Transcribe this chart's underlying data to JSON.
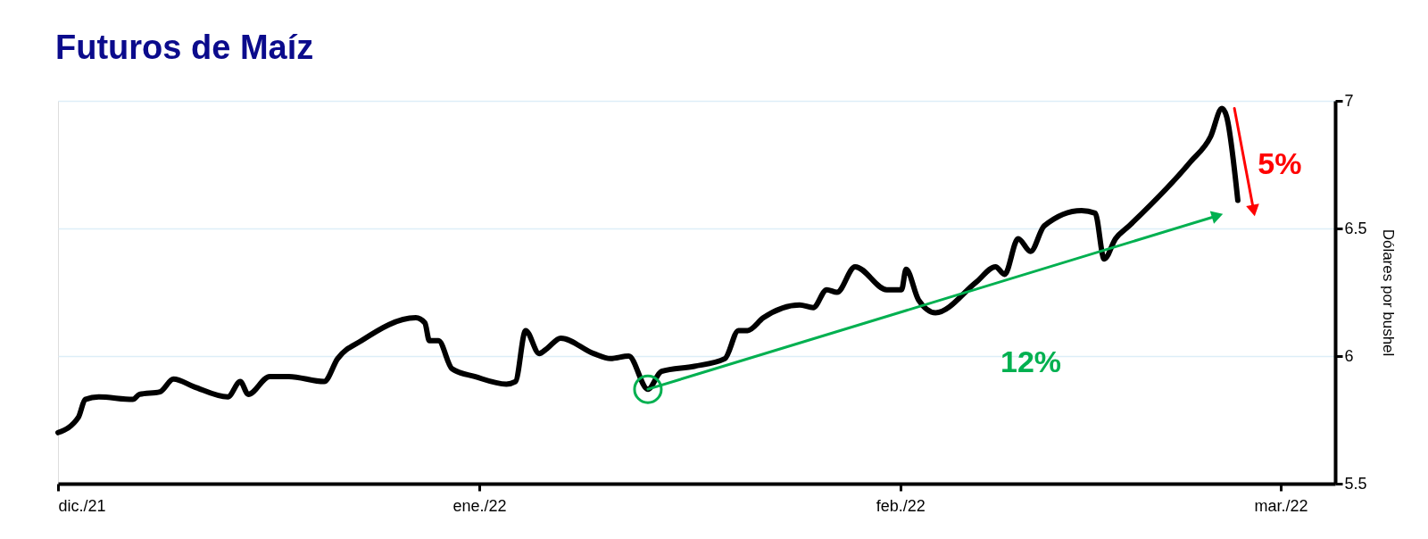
{
  "chart_data": {
    "type": "line",
    "title": "Futuros de Maíz",
    "ylabel": "Dólares por bushel",
    "xlim": [
      "2021-12-01",
      "2022-03-05"
    ],
    "xticks": [
      {
        "value": "2021-12-01",
        "label": "dic./21"
      },
      {
        "value": "2022-01-01",
        "label": "ene./22"
      },
      {
        "value": "2022-02-01",
        "label": "feb./22"
      },
      {
        "value": "2022-03-01",
        "label": "mar./22"
      }
    ],
    "ylim": [
      5.5,
      7
    ],
    "yticks": [
      5.5,
      6,
      6.5,
      7
    ],
    "grid": "y",
    "series": [
      {
        "color": "#000000",
        "x": [
          "2021-12-01T00:00",
          "2021-12-02T12:00",
          "2021-12-03T00:00",
          "2021-12-04T00:00",
          "2021-12-06T12:00",
          "2021-12-07T00:00",
          "2021-12-08T12:00",
          "2021-12-09T12:00",
          "2021-12-11T00:00",
          "2021-12-13T12:00",
          "2021-12-14T10:00",
          "2021-12-15T00:00",
          "2021-12-16T14:00",
          "2021-12-18T00:00",
          "2021-12-20T14:00",
          "2021-12-21T14:00",
          "2021-12-23T08:00",
          "2021-12-27T08:00",
          "2021-12-28T00:00",
          "2021-12-28T08:00",
          "2021-12-29T00:00",
          "2021-12-30T00:00",
          "2021-12-31T16:00",
          "2022-01-03T00:00",
          "2022-01-03T16:00",
          "2022-01-04T10:00",
          "2022-01-05T10:00",
          "2022-01-06T00:00",
          "2022-01-07T00:00",
          "2022-01-09T10:00",
          "2022-01-10T16:00",
          "2022-01-12T00:00",
          "2022-01-13T10:00",
          "2022-01-14T10:00",
          "2022-01-16T20:00",
          "2022-01-19T02:00",
          "2022-01-20T02:00",
          "2022-01-20T18:00",
          "2022-01-21T22:00",
          "2022-01-24T14:00",
          "2022-01-25T14:00",
          "2022-01-26T14:00",
          "2022-01-27T08:00",
          "2022-01-28T16:00",
          "2022-01-31T00:00",
          "2022-02-01T02:00",
          "2022-02-01T10:00",
          "2022-02-02T08:00",
          "2022-02-03T14:00",
          "2022-02-06T14:00",
          "2022-02-08T00:00",
          "2022-02-08T16:00",
          "2022-02-09T16:00",
          "2022-02-10T14:00",
          "2022-02-11T14:00",
          "2022-02-14T08:00",
          "2022-02-15T08:00",
          "2022-02-16T00:00",
          "2022-02-16T20:00",
          "2022-02-17T20:00",
          "2022-02-22T08:00",
          "2022-02-23T20:00",
          "2022-02-24T16:00",
          "2022-02-25T00:00",
          "2022-02-25T20:00"
        ],
        "values": [
          5.7,
          5.76,
          5.83,
          5.84,
          5.83,
          5.85,
          5.86,
          5.91,
          5.88,
          5.84,
          5.9,
          5.85,
          5.92,
          5.92,
          5.9,
          5.99,
          6.06,
          6.15,
          6.13,
          6.06,
          6.06,
          5.95,
          5.92,
          5.89,
          5.9,
          6.1,
          6.01,
          6.03,
          6.07,
          6.01,
          5.99,
          6.0,
          5.87,
          5.94,
          5.96,
          5.99,
          6.1,
          6.1,
          6.15,
          6.2,
          6.19,
          6.26,
          6.25,
          6.35,
          6.26,
          6.26,
          6.34,
          6.22,
          6.17,
          6.29,
          6.35,
          6.32,
          6.46,
          6.41,
          6.51,
          6.57,
          6.56,
          6.38,
          6.46,
          6.51,
          6.76,
          6.86,
          6.97,
          6.94,
          6.61
        ]
      },
      {
        "type": "line",
        "color": "#00b050",
        "x": [
          "2022-01-13T10:00",
          "2022-02-24T08:00"
        ],
        "values": [
          5.87,
          6.55
        ]
      },
      {
        "type": "line",
        "color": "#ff0000",
        "x": [
          "2022-02-25T14:00",
          "2022-02-27T00:00"
        ],
        "values": [
          6.97,
          6.57
        ]
      },
      {
        "type": "scatter",
        "color": "#00b050",
        "x": [
          "2022-01-13T10:00"
        ],
        "values": [
          5.87
        ]
      }
    ],
    "annotations": [
      "12%",
      "5%"
    ]
  }
}
